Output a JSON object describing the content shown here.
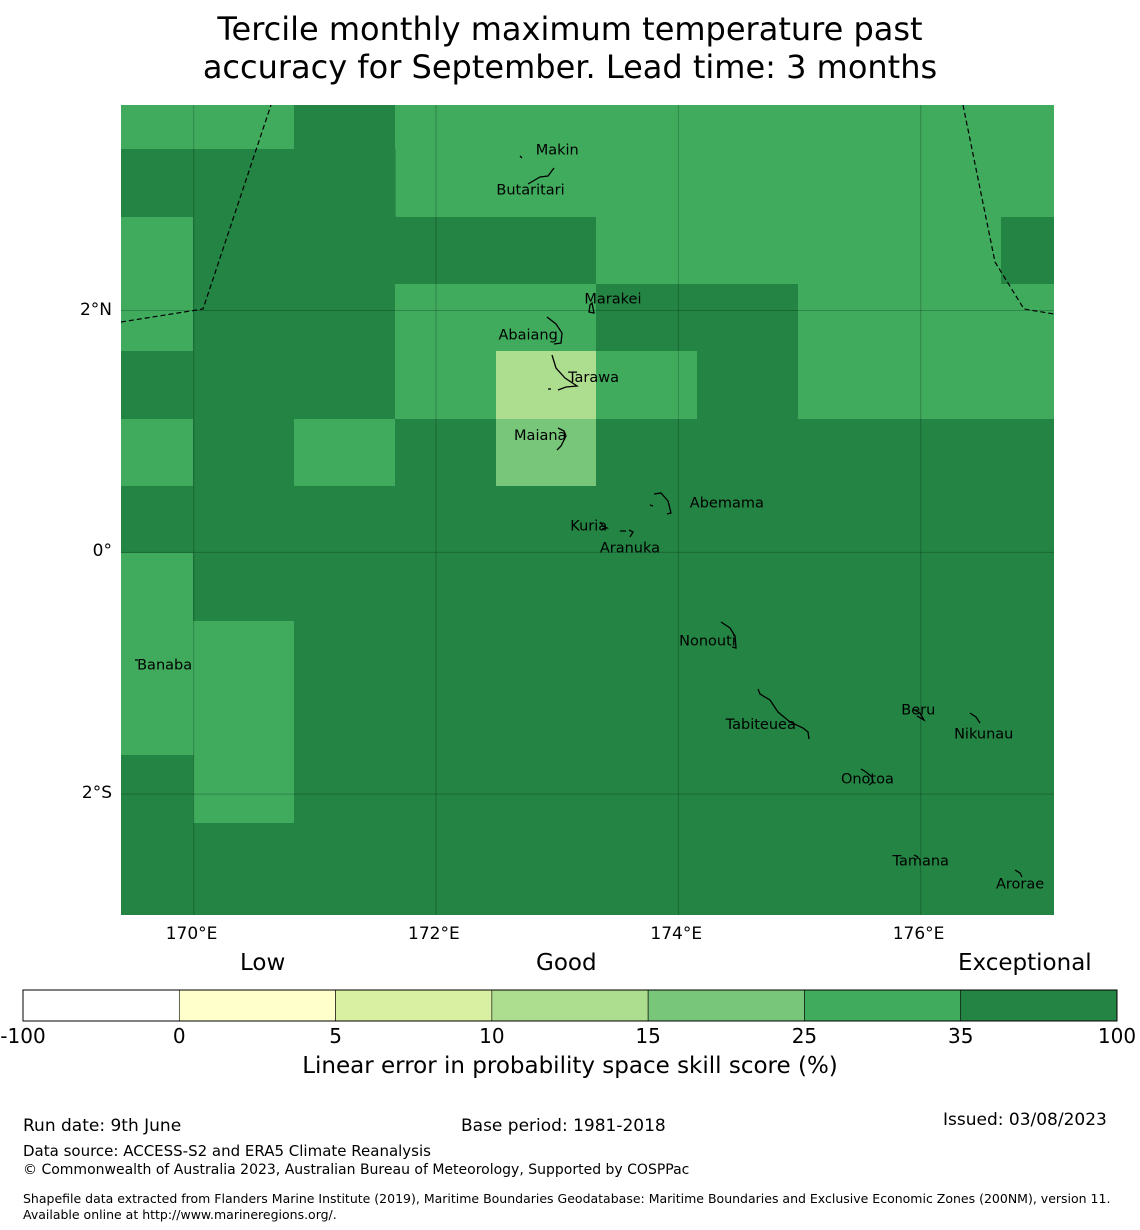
{
  "title_lines": [
    "Tercile monthly maximum temperature past",
    "accuracy for September. Lead time: 3 months"
  ],
  "map": {
    "lon_range": [
      169.4,
      177.1
    ],
    "lat_range": [
      -3.0,
      3.7
    ],
    "x_ticks": [
      {
        "lon": 170,
        "label": "170°E"
      },
      {
        "lon": 172,
        "label": "172°E"
      },
      {
        "lon": 174,
        "label": "174°E"
      },
      {
        "lon": 176,
        "label": "176°E"
      }
    ],
    "y_ticks": [
      {
        "lat": 2,
        "label": "2°N"
      },
      {
        "lat": 0,
        "label": "0°"
      },
      {
        "lat": -2,
        "label": "2°S"
      }
    ],
    "colors": {
      "c15_25": "#78c679",
      "c25_35": "#41ab5d",
      "c35_100": "#238443",
      "c10_15": "#addd8e"
    },
    "places": [
      {
        "name": "Makin",
        "lon": 173.0,
        "lat": 3.33
      },
      {
        "name": "Butaritari",
        "lon": 172.78,
        "lat": 3.0
      },
      {
        "name": "Marakei",
        "lon": 173.46,
        "lat": 2.1
      },
      {
        "name": "Abaiang",
        "lon": 172.76,
        "lat": 1.8
      },
      {
        "name": "Tarawa",
        "lon": 173.3,
        "lat": 1.45
      },
      {
        "name": "Maiana",
        "lon": 172.86,
        "lat": 0.97
      },
      {
        "name": "Abemama",
        "lon": 174.4,
        "lat": 0.41
      },
      {
        "name": "Kuria",
        "lon": 173.26,
        "lat": 0.22
      },
      {
        "name": "Aranuka",
        "lon": 173.6,
        "lat": 0.04
      },
      {
        "name": "Banaba",
        "lon": 169.76,
        "lat": -0.93
      },
      {
        "name": "Nonouti",
        "lon": 174.24,
        "lat": -0.73
      },
      {
        "name": "Tabiteuea",
        "lon": 174.68,
        "lat": -1.42
      },
      {
        "name": "Beru",
        "lon": 175.98,
        "lat": -1.3
      },
      {
        "name": "Nikunau",
        "lon": 176.52,
        "lat": -1.5
      },
      {
        "name": "Onotoa",
        "lon": 175.56,
        "lat": -1.87
      },
      {
        "name": "Tamana",
        "lon": 176.0,
        "lat": -2.55
      },
      {
        "name": "Arorae",
        "lon": 176.82,
        "lat": -2.74
      }
    ]
  },
  "colorbar": {
    "group_labels": [
      "Low",
      "Good",
      "Exceptional"
    ],
    "bins": [
      {
        "from": "-100",
        "to": "0",
        "color": "#ffffff"
      },
      {
        "from": "0",
        "to": "5",
        "color": "#ffffcc"
      },
      {
        "from": "5",
        "to": "10",
        "color": "#d9f0a3"
      },
      {
        "from": "10",
        "to": "15",
        "color": "#addd8e"
      },
      {
        "from": "15",
        "to": "25",
        "color": "#78c679"
      },
      {
        "from": "25",
        "to": "35",
        "color": "#41ab5d"
      },
      {
        "from": "35",
        "to": "100",
        "color": "#238443"
      }
    ],
    "tick_labels": [
      "-100",
      "0",
      "5",
      "10",
      "15",
      "25",
      "35",
      "100"
    ],
    "label": "Linear error in probability space skill score (%)"
  },
  "footer": {
    "run_date": "Run date: 9th June",
    "base_period": "Base period: 1981-2018",
    "issued": "Issued: 03/08/2023",
    "data_source": "Data source: ACCESS-S2 and ERA5 Climate Reanalysis",
    "copyright": "© Commonwealth of Australia 2023, Australian Bureau of Meteorology, Supported by COSPPac",
    "shapefile": "Shapefile data extracted from Flanders Marine Institute (2019), Maritime Boundaries Geodatabase: Maritime Boundaries and Exclusive Economic Zones (200NM), version 11. Available online at http://www.marineregions.org/."
  }
}
